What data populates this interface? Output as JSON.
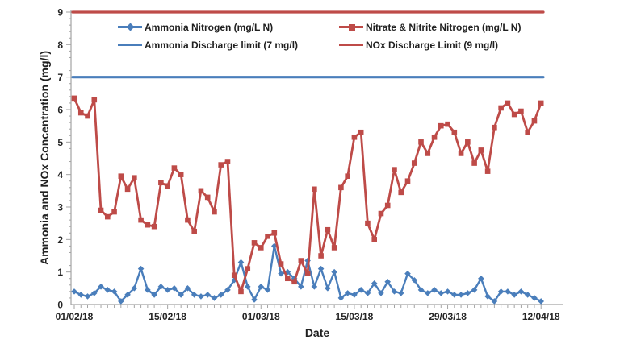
{
  "chart_data": {
    "type": "line",
    "title": "",
    "xlabel": "Date",
    "ylabel": "Ammonia and NOx Concentration (mg/l)",
    "ylim": [
      0,
      9
    ],
    "grid": false,
    "legend_position": "top-inside-two-columns",
    "y_ticks": [
      0,
      1,
      2,
      3,
      4,
      5,
      6,
      7,
      8,
      9
    ],
    "x_tick_labels": [
      "01/02/18",
      "15/02/18",
      "01/03/18",
      "15/03/18",
      "29/03/18",
      "12/04/18"
    ],
    "x_tick_days": [
      0,
      14,
      28,
      42,
      56,
      70
    ],
    "x_days_total": 70,
    "series": [
      {
        "id": "ammonia-nitrogen",
        "name": "Ammonia Nitrogen (mg/L N)",
        "type": "line",
        "color": "#4A7EBB",
        "marker": "diamond",
        "values": [
          0.4,
          0.3,
          0.25,
          0.35,
          0.55,
          0.45,
          0.4,
          0.1,
          0.3,
          0.5,
          1.1,
          0.45,
          0.3,
          0.55,
          0.45,
          0.5,
          0.3,
          0.5,
          0.3,
          0.25,
          0.3,
          0.2,
          0.3,
          0.45,
          0.75,
          1.3,
          0.55,
          0.15,
          0.55,
          0.45,
          1.8,
          0.95,
          1.0,
          0.8,
          0.55,
          1.35,
          0.55,
          1.1,
          0.5,
          1.0,
          0.2,
          0.35,
          0.3,
          0.45,
          0.35,
          0.65,
          0.35,
          0.7,
          0.4,
          0.35,
          0.95,
          0.75,
          0.45,
          0.35,
          0.45,
          0.35,
          0.4,
          0.3,
          0.3,
          0.35,
          0.45,
          0.8,
          0.25,
          0.1,
          0.4,
          0.4,
          0.3,
          0.4,
          0.3,
          0.2,
          0.1
        ]
      },
      {
        "id": "nitrate-nitrite-nitrogen",
        "name": "Nitrate & Nitrite Nitrogen (mg/L N)",
        "type": "line",
        "color": "#BE4B48",
        "marker": "square",
        "values": [
          6.35,
          5.9,
          5.8,
          6.3,
          2.9,
          2.7,
          2.85,
          3.95,
          3.55,
          3.9,
          2.6,
          2.45,
          2.4,
          3.75,
          3.65,
          4.2,
          4.0,
          2.6,
          2.25,
          3.5,
          3.3,
          2.85,
          4.3,
          4.4,
          0.9,
          0.4,
          1.1,
          1.9,
          1.75,
          2.1,
          2.2,
          1.25,
          0.8,
          0.7,
          1.35,
          0.95,
          3.55,
          1.5,
          2.3,
          1.75,
          3.6,
          3.95,
          5.15,
          5.3,
          2.5,
          2.0,
          2.8,
          3.05,
          4.15,
          3.45,
          3.8,
          4.35,
          5.0,
          4.65,
          5.15,
          5.5,
          5.55,
          5.3,
          4.65,
          5.0,
          4.35,
          4.75,
          4.1,
          5.45,
          6.05,
          6.2,
          5.85,
          5.95,
          5.3,
          5.65,
          6.2
        ]
      },
      {
        "id": "ammonia-discharge-limit",
        "name": "Ammonia Discharge limit (7 mg/l)",
        "type": "hline",
        "color": "#4A7EBB",
        "marker": "none",
        "value": 7
      },
      {
        "id": "nox-discharge-limit",
        "name": "NOx Discharge Limit (9 mg/l)",
        "type": "hline",
        "color": "#BE4B48",
        "marker": "none",
        "value": 9
      }
    ]
  }
}
